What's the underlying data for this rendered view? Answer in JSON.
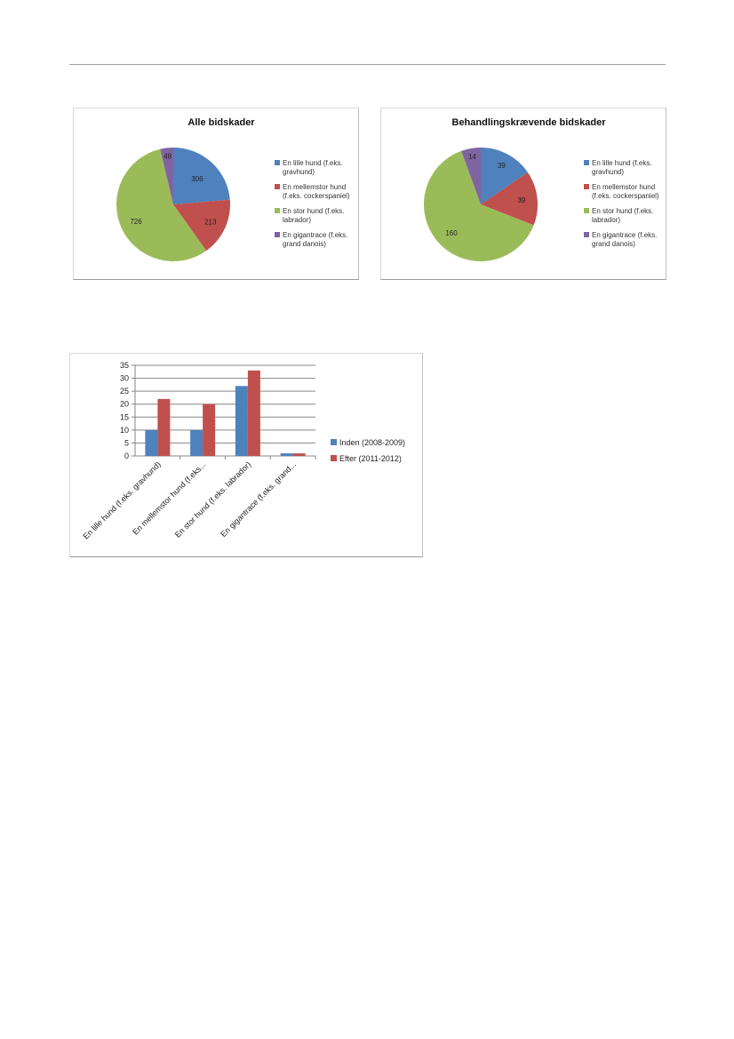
{
  "chart_data": [
    {
      "type": "pie",
      "title": "Alle bidskader",
      "labels": [
        "En lille hund (f.eks. gravhund)",
        "En mellemstor hund (f.eks. cockerspaniel)",
        "En stor hund (f.eks. labrador)",
        "En gigantrace (f.eks. grand danois)"
      ],
      "legend_lines": [
        [
          "En lille hund (f.eks.",
          "gravhund)"
        ],
        [
          "En mellemstor hund",
          "(f.eks. cockerspaniel)"
        ],
        [
          "En stor hund (f.eks.",
          "labrador)"
        ],
        [
          "En gigantrace (f.eks.",
          "grand danois)"
        ]
      ],
      "values": [
        306,
        213,
        726,
        48
      ],
      "data_labels": [
        "306",
        "213",
        "726",
        "48"
      ],
      "legend": "right"
    },
    {
      "type": "pie",
      "title": "Behandlingskrævende bidskader",
      "labels": [
        "En lille hund (f.eks. gravhund)",
        "En mellemstor hund (f.eks. cockerspaniel)",
        "En stor hund (f.eks. labrador)",
        "En gigantrace (f.eks. grand danois)"
      ],
      "legend_lines": [
        [
          "En lille hund (f.eks.",
          "gravhund)"
        ],
        [
          "En mellemstor hund",
          "(f.eks. cockerspaniel)"
        ],
        [
          "En stor hund (f.eks.",
          "labrador)"
        ],
        [
          "En gigantrace (f.eks.",
          "grand danois)"
        ]
      ],
      "values": [
        39,
        39,
        160,
        14
      ],
      "data_labels": [
        "39",
        "39",
        "160",
        "14"
      ],
      "legend": "right"
    },
    {
      "type": "bar",
      "categories": [
        "En lille hund (f.eks. gravhund)",
        "En mellemstor hund (f.eks...",
        "En stor hund (f.eks. labrador)",
        "En gigantrace (f.eks. grand..."
      ],
      "series": [
        {
          "name": "Inden (2008-2009)",
          "values": [
            10,
            10,
            27,
            1
          ]
        },
        {
          "name": "Efter (2011-2012)",
          "values": [
            22,
            20,
            33,
            1
          ]
        }
      ],
      "ylim": [
        0,
        35
      ],
      "yticks": [
        "0",
        "5",
        "10",
        "15",
        "20",
        "25",
        "30",
        "35"
      ],
      "grid": true,
      "legend": "right"
    }
  ],
  "colors": {
    "blue": "#4f81bd",
    "red": "#c0504d",
    "green": "#9bbb59",
    "purple": "#8064a2",
    "grid": "#868686",
    "axis": "#868686"
  }
}
